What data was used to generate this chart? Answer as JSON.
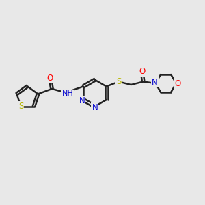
{
  "bg_color": "#e8e8e8",
  "bond_color": "#222222",
  "bond_width": 1.8,
  "atom_colors": {
    "O": "#ff0000",
    "N": "#0000cd",
    "S": "#b8b800",
    "C": "#222222"
  },
  "font_size": 8.5,
  "fig_size": [
    3.0,
    3.0
  ],
  "dpi": 100,
  "xlim": [
    0,
    12
  ],
  "ylim": [
    0,
    10
  ]
}
